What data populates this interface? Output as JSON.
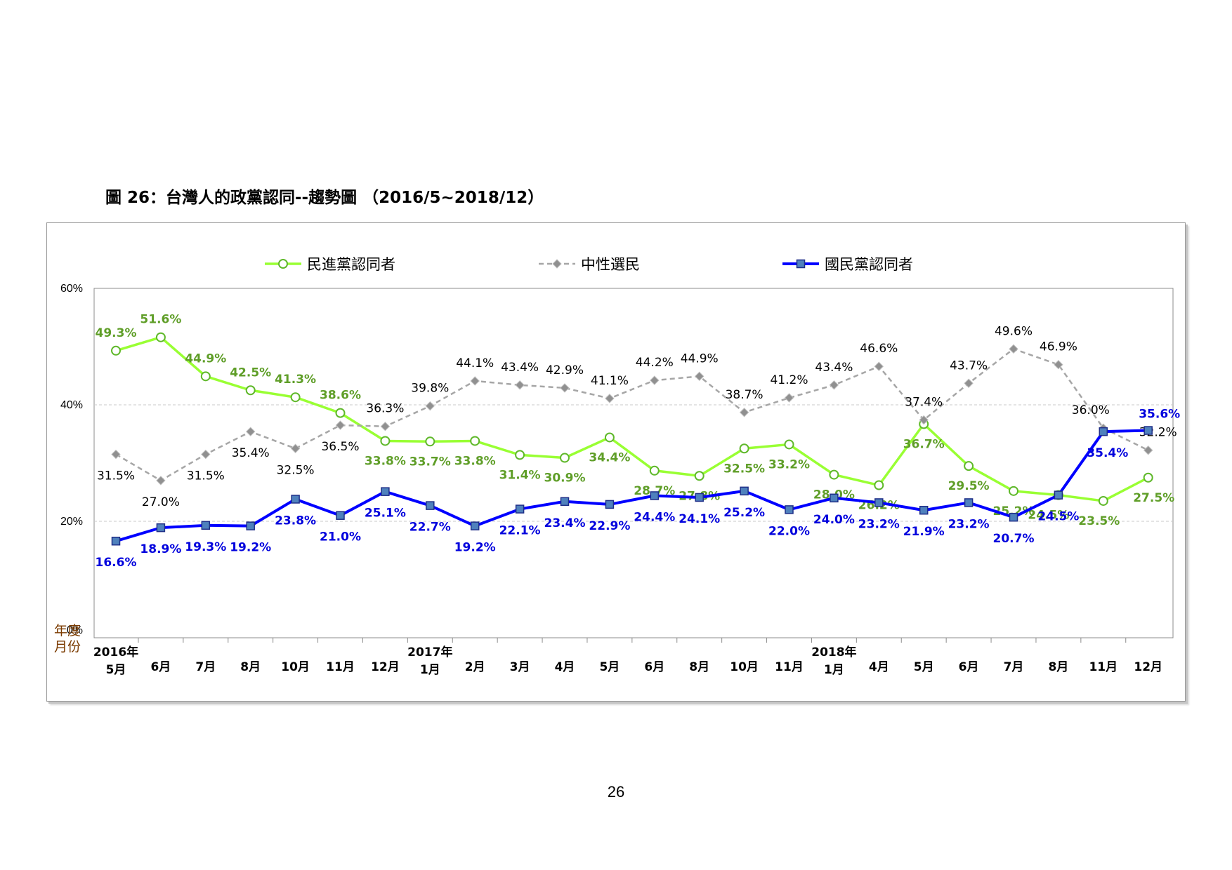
{
  "figure": {
    "title": "圖 26：台灣人的政黨認同--趨勢圖 （2016/5~2018/12）",
    "page_number": "26"
  },
  "colors": {
    "dpp": "#99ff33",
    "dpp_label": "#5f9e28",
    "neutral": "#a6a6a6",
    "neutral_label": "#000000",
    "kmt": "#0000ff",
    "kmt_label": "#0000dd",
    "kmt_marker": "#4f81bd",
    "axis_unit": "#7b3b00"
  },
  "chart_data": {
    "type": "line",
    "ylim": [
      0,
      60
    ],
    "yticks": [
      "0%",
      "20%",
      "40%",
      "60%"
    ],
    "ytick_values": [
      0,
      20,
      40,
      60
    ],
    "axis_unit_labels": [
      "年度",
      "月份"
    ],
    "grid": "horizontal dashed",
    "legend_position": "top",
    "x": [
      "5月",
      "6月",
      "7月",
      "8月",
      "10月",
      "11月",
      "12月",
      "1月",
      "2月",
      "3月",
      "4月",
      "5月",
      "6月",
      "8月",
      "10月",
      "11月",
      "1月",
      "4月",
      "5月",
      "6月",
      "7月",
      "8月",
      "11月",
      "12月"
    ],
    "year_labels": [
      {
        "label": "2016年",
        "index": 0
      },
      {
        "label": "2017年",
        "index": 7
      },
      {
        "label": "2018年",
        "index": 16
      }
    ],
    "series": [
      {
        "name": "民進黨認同者",
        "key": "dpp",
        "marker": "circle",
        "values": [
          49.3,
          51.6,
          44.9,
          42.5,
          41.3,
          38.6,
          33.8,
          33.7,
          33.8,
          31.4,
          30.9,
          34.4,
          28.7,
          27.8,
          32.5,
          33.2,
          28.0,
          26.2,
          36.7,
          29.5,
          25.2,
          24.5,
          23.5,
          27.5
        ],
        "labels": [
          "49.3%",
          "51.6%",
          "44.9%",
          "42.5%",
          "41.3%",
          "38.6%",
          "33.8%",
          "33.7%",
          "33.8%",
          "31.4%",
          "30.9%",
          "34.4%",
          "28.7%",
          "27.8%",
          "32.5%",
          "33.2%",
          "28.0%",
          "26.2%",
          "36.7%",
          "29.5%",
          "25.2%",
          "24.5%",
          "23.5%",
          "27.5%"
        ]
      },
      {
        "name": "中性選民",
        "key": "neutral",
        "marker": "diamond",
        "values": [
          31.5,
          27.0,
          31.5,
          35.4,
          32.5,
          36.5,
          36.3,
          39.8,
          44.1,
          43.4,
          42.9,
          41.1,
          44.2,
          44.9,
          38.7,
          41.2,
          43.4,
          46.6,
          37.4,
          43.7,
          49.6,
          46.9,
          36.0,
          32.2
        ],
        "labels": [
          "31.5%",
          "27.0%",
          "31.5%",
          "35.4%",
          "32.5%",
          "36.5%",
          "36.3%",
          "39.8%",
          "44.1%",
          "43.4%",
          "42.9%",
          "41.1%",
          "44.2%",
          "44.9%",
          "38.7%",
          "41.2%",
          "43.4%",
          "46.6%",
          "37.4%",
          "43.7%",
          "49.6%",
          "46.9%",
          "36.0%",
          "32.2%"
        ]
      },
      {
        "name": "國民黨認同者",
        "key": "kmt",
        "marker": "square",
        "values": [
          16.6,
          18.9,
          19.3,
          19.2,
          23.8,
          21.0,
          25.1,
          22.7,
          19.2,
          22.1,
          23.4,
          22.9,
          24.4,
          24.1,
          25.2,
          22.0,
          24.0,
          23.2,
          21.9,
          23.2,
          20.7,
          24.5,
          35.4,
          35.6
        ],
        "labels": [
          "16.6%",
          "18.9%",
          "19.3%",
          "19.2%",
          "23.8%",
          "21.0%",
          "25.1%",
          "22.7%",
          "19.2%",
          "22.1%",
          "23.4%",
          "22.9%",
          "24.4%",
          "24.1%",
          "25.2%",
          "22.0%",
          "24.0%",
          "23.2%",
          "21.9%",
          "23.2%",
          "20.7%",
          "24.5%",
          "35.4%",
          "35.6%"
        ]
      }
    ]
  }
}
